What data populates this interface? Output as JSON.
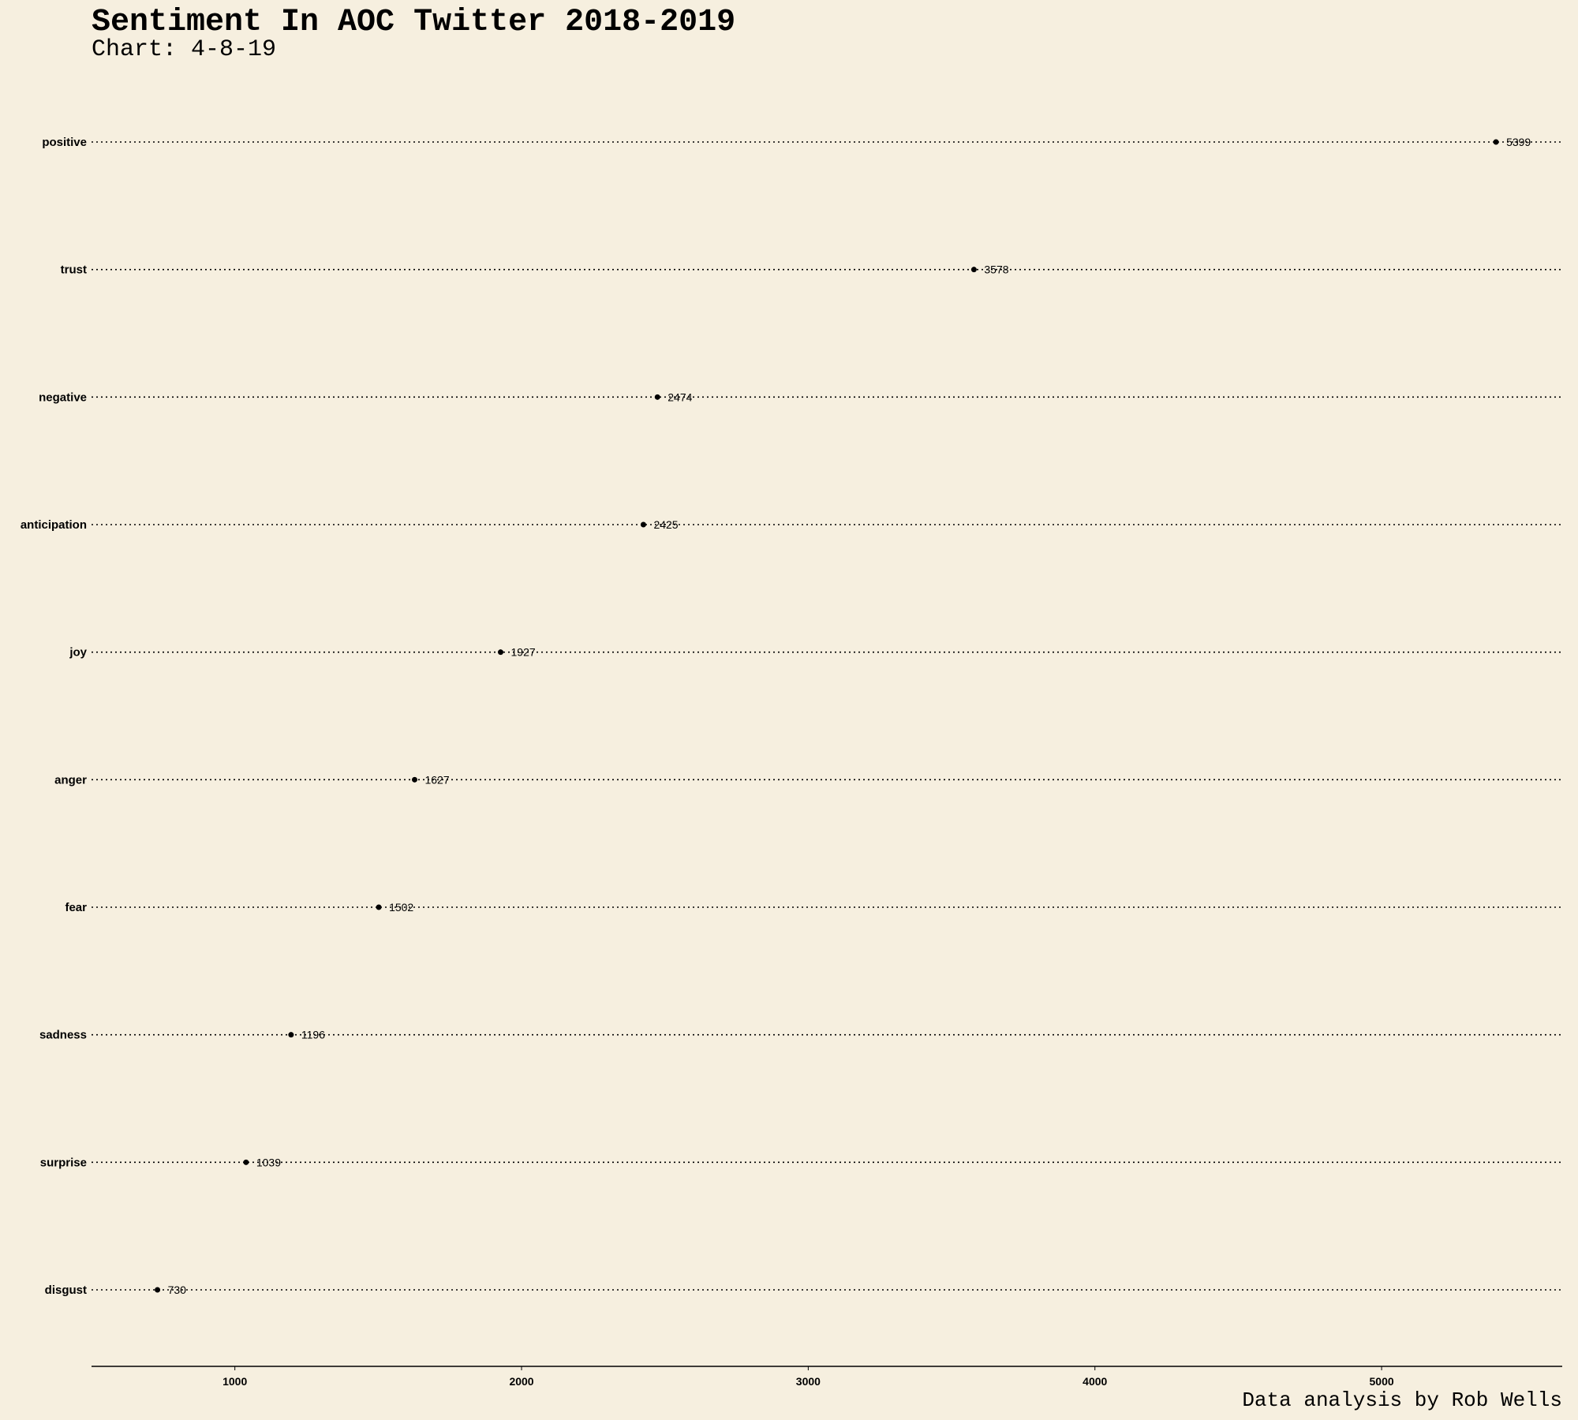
{
  "chart_data": {
    "type": "dot",
    "title": "Sentiment In AOC Twitter 2018-2019",
    "subtitle": "Chart: 4-8-19",
    "caption": "Data analysis by Rob Wells",
    "categories": [
      "positive",
      "trust",
      "negative",
      "anticipation",
      "joy",
      "anger",
      "fear",
      "sadness",
      "surprise",
      "disgust"
    ],
    "values": [
      5399,
      3578,
      2474,
      2425,
      1927,
      1627,
      1502,
      1196,
      1039,
      730
    ],
    "xlim": [
      500,
      5630
    ],
    "xticks": [
      1000,
      2000,
      3000,
      4000,
      5000
    ],
    "xlabel": "",
    "ylabel": "",
    "grid": "dotted horizontal lines per category",
    "colors": {
      "background": "#f6efdf",
      "point": "#000000"
    }
  }
}
